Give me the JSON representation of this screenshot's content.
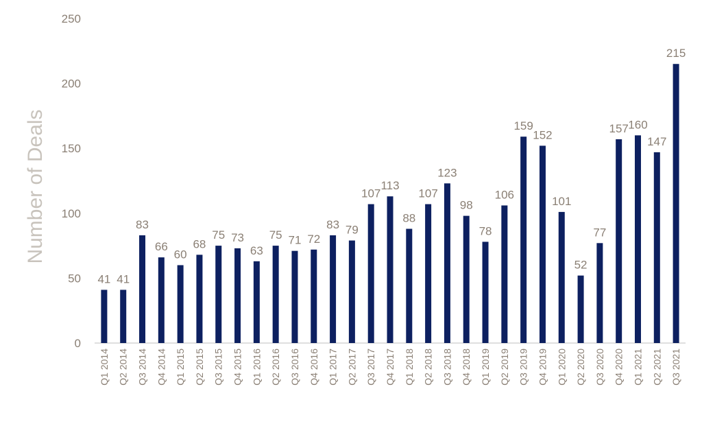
{
  "chart_data": {
    "type": "bar",
    "title": "",
    "xlabel": "",
    "ylabel": "Number of Deals",
    "ylim": [
      0,
      250
    ],
    "yticks": [
      0,
      50,
      100,
      150,
      200,
      250
    ],
    "grid": false,
    "bar_color": "#0d2060",
    "categories": [
      "Q1 2014",
      "Q2 2014",
      "Q3 2014",
      "Q4 2014",
      "Q1 2015",
      "Q2 2015",
      "Q3 2015",
      "Q4 2015",
      "Q1 2016",
      "Q2 2016",
      "Q3 2016",
      "Q4 2016",
      "Q1 2017",
      "Q2 2017",
      "Q3 2017",
      "Q4 2017",
      "Q1 2018",
      "Q2 2018",
      "Q3 2018",
      "Q4 2018",
      "Q1 2019",
      "Q2 2019",
      "Q3 2019",
      "Q4 2019",
      "Q1 2020",
      "Q2 2020",
      "Q3 2020",
      "Q4 2020",
      "Q1 2021",
      "Q2 2021",
      "Q3 2021"
    ],
    "values": [
      41,
      41,
      83,
      66,
      60,
      68,
      75,
      73,
      63,
      75,
      71,
      72,
      83,
      79,
      107,
      113,
      88,
      107,
      123,
      98,
      78,
      106,
      159,
      152,
      101,
      52,
      77,
      157,
      160,
      147,
      215
    ]
  }
}
